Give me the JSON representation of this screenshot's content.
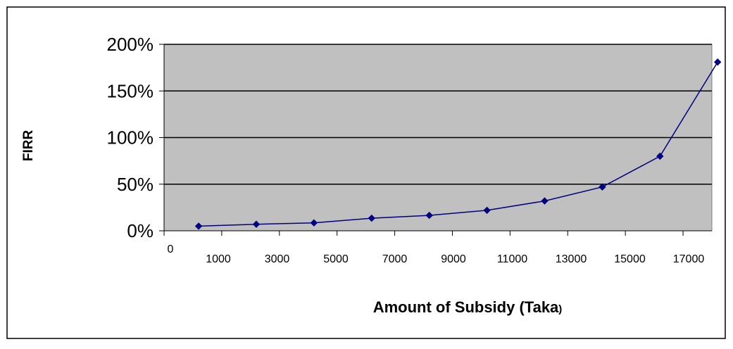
{
  "chart_data": {
    "type": "line",
    "title": "",
    "xlabel_main": "Amount of Subsidy (Taka",
    "xlabel_paren": ")",
    "ylabel": "FIRR",
    "x_tick_labels": [
      "0",
      "1000",
      "3000",
      "5000",
      "7000",
      "9000",
      "11000",
      "13000",
      "15000",
      "17000"
    ],
    "y_tick_labels": [
      "0%",
      "50%",
      "100%",
      "150%",
      "200%"
    ],
    "ylim": [
      0,
      200
    ],
    "grid": true,
    "legend": "none",
    "series": [
      {
        "values": [
          5,
          7,
          8.5,
          13.5,
          16.5,
          22,
          32,
          47,
          80,
          181
        ]
      }
    ],
    "colors": {
      "plot_background": "#c0c0c0",
      "line": "#000080",
      "marker": "#000080",
      "gridline": "#000000"
    }
  }
}
